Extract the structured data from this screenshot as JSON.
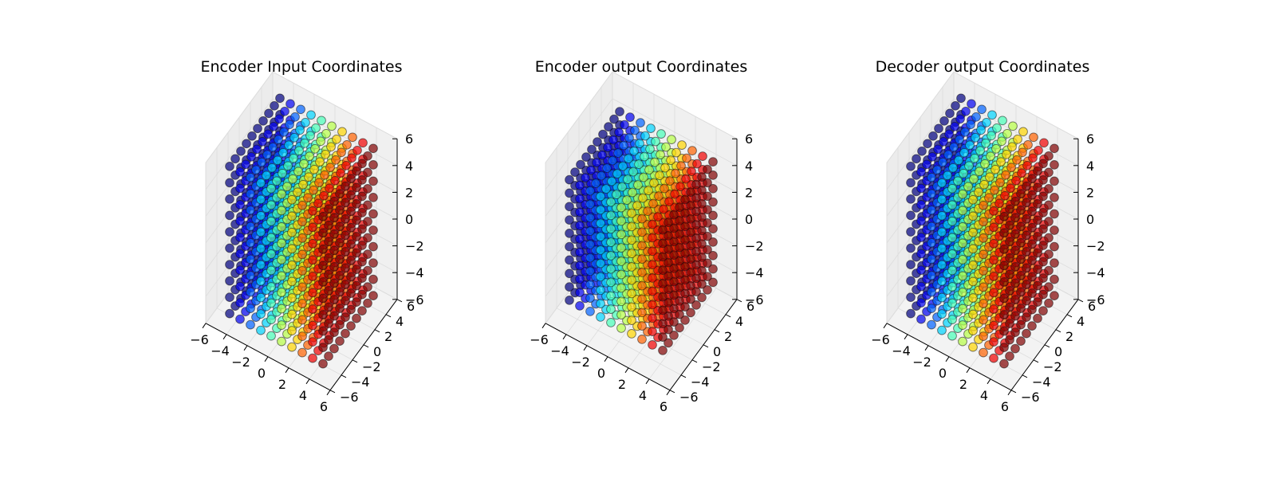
{
  "chart_data": [
    {
      "type": "scatter",
      "projection": "3d",
      "title": "Encoder Input Coordinates",
      "grid": true,
      "xlim": [
        -6,
        6
      ],
      "ylim": [
        -6,
        6
      ],
      "zlim": [
        -6,
        6
      ],
      "x_ticks": [
        "−6",
        "−4",
        "−2",
        "0",
        "2",
        "4",
        "6"
      ],
      "y_ticks": [
        "−6",
        "−4",
        "−2",
        "0",
        "2",
        "4",
        "6"
      ],
      "z_ticks": [
        "−6",
        "−4",
        "−2",
        "0",
        "2",
        "4",
        "6"
      ],
      "points": {
        "layout": "grid",
        "x_range": [
          -4.5,
          4.5
        ],
        "y_range": [
          -4.5,
          4.5
        ],
        "z_range": [
          -5.5,
          5.5
        ],
        "count_per_axis": 10,
        "color_by": "x",
        "colormap": "jet",
        "alpha": 0.7
      }
    },
    {
      "type": "scatter",
      "projection": "3d",
      "title": "Encoder output Coordinates",
      "grid": true,
      "xlim": [
        -6,
        6
      ],
      "ylim": [
        -6,
        6
      ],
      "zlim": [
        -6,
        6
      ],
      "x_ticks": [
        "−6",
        "−4",
        "−2",
        "0",
        "2",
        "4",
        "6"
      ],
      "y_ticks": [
        "−6",
        "−4",
        "−2",
        "0",
        "2",
        "4",
        "6"
      ],
      "z_ticks": [
        "−6",
        "−4",
        "−2",
        "0",
        "2",
        "4",
        "6"
      ],
      "points": {
        "layout": "grid",
        "x_range": [
          -4.5,
          4.5
        ],
        "y_range": [
          -4.5,
          4.5
        ],
        "z_range": [
          -4.5,
          4.5
        ],
        "count_per_axis": 10,
        "color_by": "x",
        "colormap": "jet",
        "alpha": 0.7
      }
    },
    {
      "type": "scatter",
      "projection": "3d",
      "title": "Decoder output Coordinates",
      "grid": true,
      "xlim": [
        -6,
        6
      ],
      "ylim": [
        -6,
        6
      ],
      "zlim": [
        -6,
        6
      ],
      "x_ticks": [
        "−6",
        "−4",
        "−2",
        "0",
        "2",
        "4",
        "6"
      ],
      "y_ticks": [
        "−6",
        "−4",
        "−2",
        "0",
        "2",
        "4",
        "6"
      ],
      "z_ticks": [
        "−6",
        "−4",
        "−2",
        "0",
        "2",
        "4",
        "6"
      ],
      "points": {
        "layout": "grid",
        "x_range": [
          -4.5,
          4.5
        ],
        "y_range": [
          -4.5,
          4.5
        ],
        "z_range": [
          -5.5,
          5.5
        ],
        "count_per_axis": 10,
        "color_by": "x",
        "colormap": "jet",
        "alpha": 0.7
      }
    }
  ]
}
